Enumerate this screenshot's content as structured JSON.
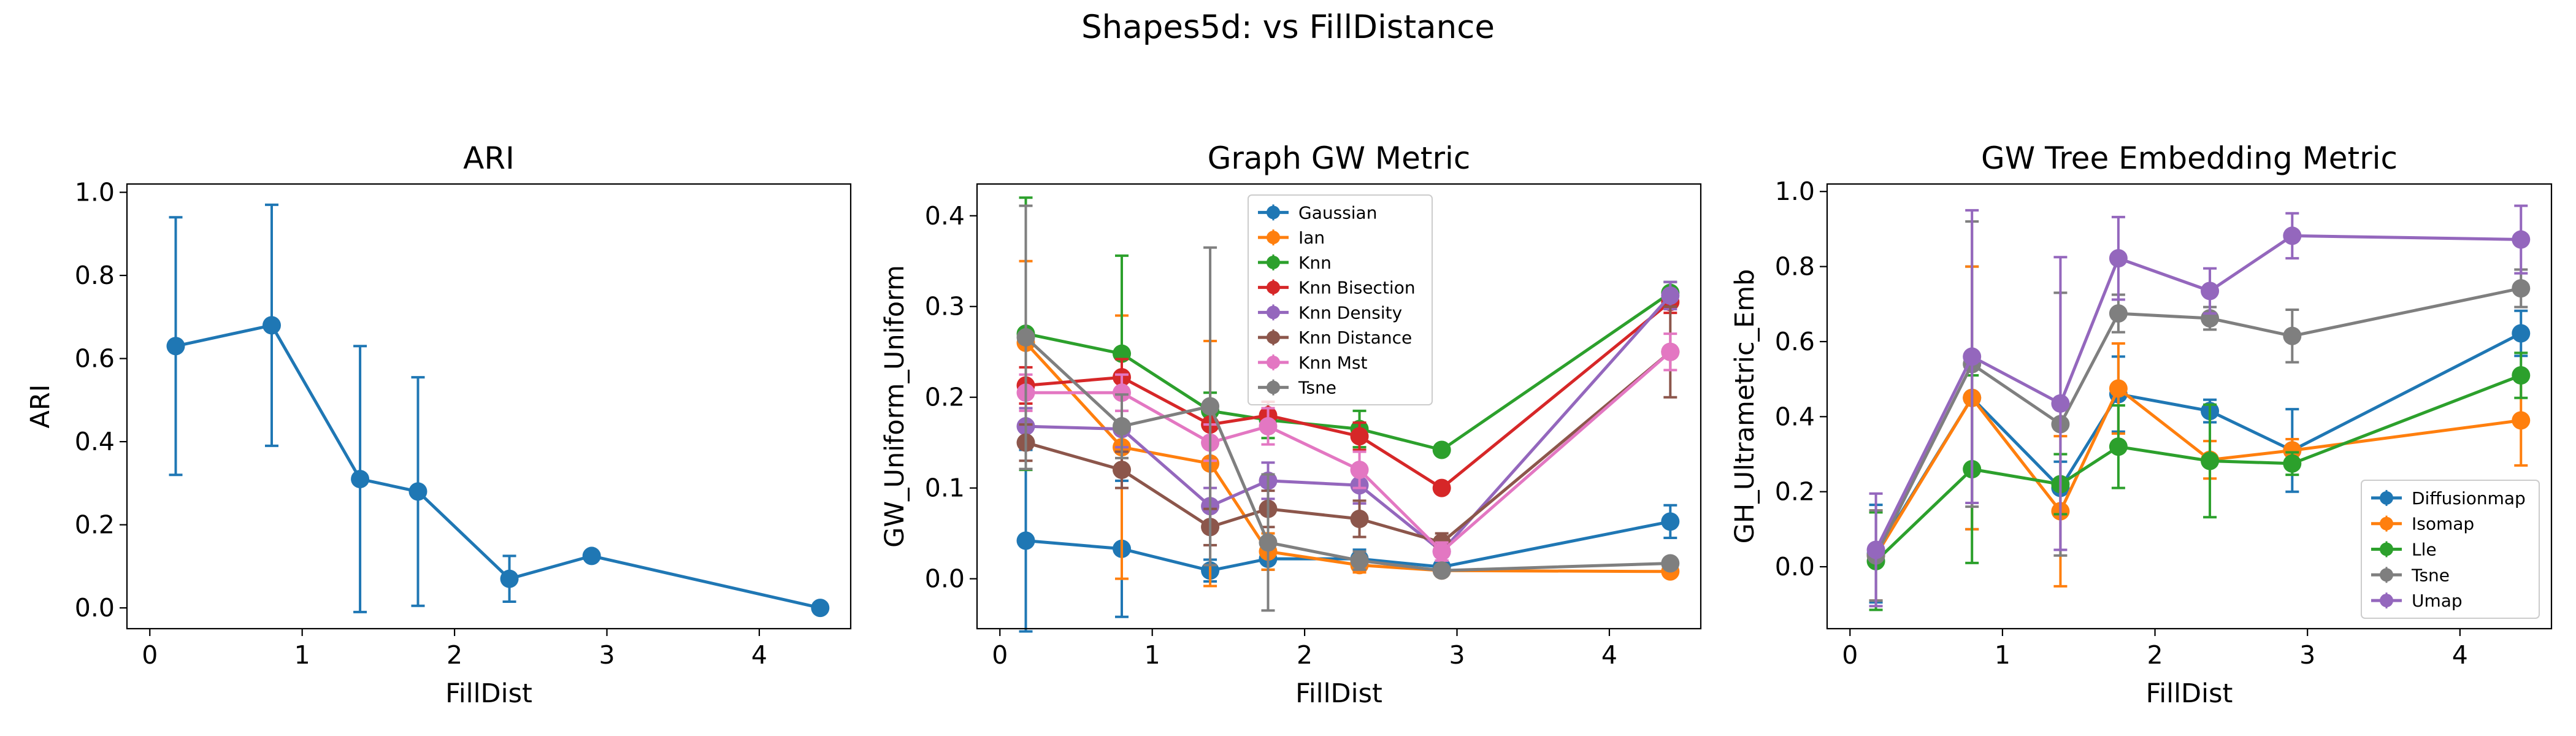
{
  "figure": {
    "title": "Shapes5d: vs FillDistance"
  },
  "colors": {
    "Gaussian": "#1f77b4",
    "Ian": "#ff7f0e",
    "Knn": "#2ca02c",
    "Knn Bisection": "#d62728",
    "Knn Density": "#9467bd",
    "Knn Distance": "#8c564b",
    "Knn Mst": "#e377c2",
    "Tsne": "#7f7f7f",
    "Diffusionmap": "#1f77b4",
    "Isomap": "#ff7f0e",
    "Lle": "#2ca02c",
    "Umap": "#9467bd"
  },
  "chart_data": [
    {
      "type": "line",
      "title": "ARI",
      "xlabel": "FillDist",
      "ylabel": "ARI",
      "xlim": [
        -0.15,
        4.6
      ],
      "ylim": [
        -0.05,
        1.02
      ],
      "xticks": [
        0,
        1,
        2,
        3,
        4
      ],
      "yticks": [
        0.0,
        0.2,
        0.4,
        0.6,
        0.8,
        1.0
      ],
      "ytick_labels": [
        "0.0",
        "0.2",
        "0.4",
        "0.6",
        "0.8",
        "1.0"
      ],
      "legend": null,
      "series": [
        {
          "name": "",
          "x": [
            0.17,
            0.8,
            1.38,
            1.76,
            2.36,
            2.9,
            4.4
          ],
          "y": [
            0.63,
            0.68,
            0.31,
            0.28,
            0.07,
            0.125,
            0.0
          ],
          "err": [
            0.31,
            0.29,
            0.32,
            0.275,
            0.055,
            0.0,
            0.0
          ]
        }
      ]
    },
    {
      "type": "line",
      "title": "Graph GW Metric",
      "xlabel": "FillDist",
      "ylabel": "GW_Uniform_Uniform",
      "xlim": [
        -0.15,
        4.6
      ],
      "ylim": [
        -0.055,
        0.435
      ],
      "xticks": [
        0,
        1,
        2,
        3,
        4
      ],
      "yticks": [
        0.0,
        0.1,
        0.2,
        0.3,
        0.4
      ],
      "ytick_labels": [
        "0.0",
        "0.1",
        "0.2",
        "0.3",
        "0.4"
      ],
      "legend": "top-center",
      "series": [
        {
          "name": "Gaussian",
          "x": [
            0.17,
            0.8,
            1.38,
            1.76,
            2.36,
            2.9,
            4.4
          ],
          "y": [
            0.042,
            0.033,
            0.009,
            0.022,
            0.022,
            0.013,
            0.063
          ],
          "err": [
            0.1,
            0.075,
            0.012,
            0.012,
            0.01,
            0.005,
            0.018
          ]
        },
        {
          "name": "Ian",
          "x": [
            0.17,
            0.8,
            1.38,
            1.76,
            2.36,
            2.9,
            4.4
          ],
          "y": [
            0.26,
            0.145,
            0.127,
            0.03,
            0.015,
            0.009,
            0.008
          ],
          "err": [
            0.09,
            0.145,
            0.135,
            0.02,
            0.008,
            0.004,
            0.005
          ]
        },
        {
          "name": "Knn",
          "x": [
            0.17,
            0.8,
            1.38,
            1.76,
            2.36,
            2.9,
            4.4
          ],
          "y": [
            0.27,
            0.248,
            0.185,
            0.175,
            0.165,
            0.142,
            0.315
          ],
          "err": [
            0.15,
            0.108,
            0.02,
            0.02,
            0.02,
            0.005,
            0.012
          ]
        },
        {
          "name": "Knn Bisection",
          "x": [
            0.17,
            0.8,
            1.38,
            1.76,
            2.36,
            2.9,
            4.4
          ],
          "y": [
            0.213,
            0.222,
            0.17,
            0.18,
            0.157,
            0.1,
            0.305
          ],
          "err": [
            0.02,
            0.02,
            0.02,
            0.015,
            0.015,
            0.005,
            0.012
          ]
        },
        {
          "name": "Knn Density",
          "x": [
            0.17,
            0.8,
            1.38,
            1.76,
            2.36,
            2.9,
            4.4
          ],
          "y": [
            0.168,
            0.165,
            0.08,
            0.108,
            0.103,
            0.03,
            0.312
          ],
          "err": [
            0.02,
            0.02,
            0.02,
            0.02,
            0.02,
            0.01,
            0.015
          ]
        },
        {
          "name": "Knn Distance",
          "x": [
            0.17,
            0.8,
            1.38,
            1.76,
            2.36,
            2.9,
            4.4
          ],
          "y": [
            0.15,
            0.12,
            0.057,
            0.077,
            0.066,
            0.04,
            0.25
          ],
          "err": [
            0.02,
            0.02,
            0.02,
            0.02,
            0.02,
            0.01,
            0.05
          ]
        },
        {
          "name": "Knn Mst",
          "x": [
            0.17,
            0.8,
            1.38,
            1.76,
            2.36,
            2.9,
            4.4
          ],
          "y": [
            0.205,
            0.205,
            0.15,
            0.168,
            0.12,
            0.03,
            0.25
          ],
          "err": [
            0.02,
            0.02,
            0.02,
            0.02,
            0.02,
            0.01,
            0.02
          ]
        },
        {
          "name": "Tsne",
          "x": [
            0.17,
            0.8,
            1.38,
            1.76,
            2.36,
            2.9,
            4.4
          ],
          "y": [
            0.266,
            0.168,
            0.19,
            0.04,
            0.02,
            0.009,
            0.017
          ],
          "err": [
            0.145,
            0.035,
            0.175,
            0.075,
            0.01,
            0.004,
            0.005
          ]
        }
      ]
    },
    {
      "type": "line",
      "title": "GW Tree Embedding Metric",
      "xlabel": "FillDist",
      "ylabel": "GH_Ultrametric_Emb",
      "xlim": [
        -0.15,
        4.6
      ],
      "ylim": [
        -0.165,
        1.02
      ],
      "xticks": [
        0,
        1,
        2,
        3,
        4
      ],
      "yticks": [
        0.0,
        0.2,
        0.4,
        0.6,
        0.8,
        1.0
      ],
      "ytick_labels": [
        "0.0",
        "0.2",
        "0.4",
        "0.6",
        "0.8",
        "1.0"
      ],
      "legend": "bottom-right",
      "series": [
        {
          "name": "Diffusionmap",
          "x": [
            0.17,
            0.8,
            1.38,
            1.76,
            2.36,
            2.9,
            4.4
          ],
          "y": [
            0.035,
            0.45,
            0.21,
            0.46,
            0.415,
            0.31,
            0.622
          ],
          "err": [
            0.13,
            0.35,
            0.07,
            0.1,
            0.03,
            0.11,
            0.06
          ]
        },
        {
          "name": "Isomap",
          "x": [
            0.17,
            0.8,
            1.38,
            1.76,
            2.36,
            2.9,
            4.4
          ],
          "y": [
            0.03,
            0.45,
            0.148,
            0.475,
            0.285,
            0.31,
            0.39
          ],
          "err": [
            0.12,
            0.35,
            0.2,
            0.12,
            0.05,
            0.03,
            0.12
          ]
        },
        {
          "name": "Lle",
          "x": [
            0.17,
            0.8,
            1.38,
            1.76,
            2.36,
            2.9,
            4.4
          ],
          "y": [
            0.015,
            0.26,
            0.22,
            0.32,
            0.282,
            0.275,
            0.51
          ],
          "err": [
            0.13,
            0.25,
            0.08,
            0.11,
            0.15,
            0.03,
            0.06
          ]
        },
        {
          "name": "Tsne",
          "x": [
            0.17,
            0.8,
            1.38,
            1.76,
            2.36,
            2.9,
            4.4
          ],
          "y": [
            0.03,
            0.54,
            0.38,
            0.675,
            0.662,
            0.615,
            0.742
          ],
          "err": [
            0.12,
            0.38,
            0.35,
            0.05,
            0.03,
            0.07,
            0.05
          ]
        },
        {
          "name": "Umap",
          "x": [
            0.17,
            0.8,
            1.38,
            1.76,
            2.36,
            2.9,
            4.4
          ],
          "y": [
            0.045,
            0.56,
            0.435,
            0.822,
            0.735,
            0.882,
            0.872
          ],
          "err": [
            0.15,
            0.39,
            0.39,
            0.11,
            0.06,
            0.06,
            0.09
          ]
        }
      ]
    }
  ]
}
